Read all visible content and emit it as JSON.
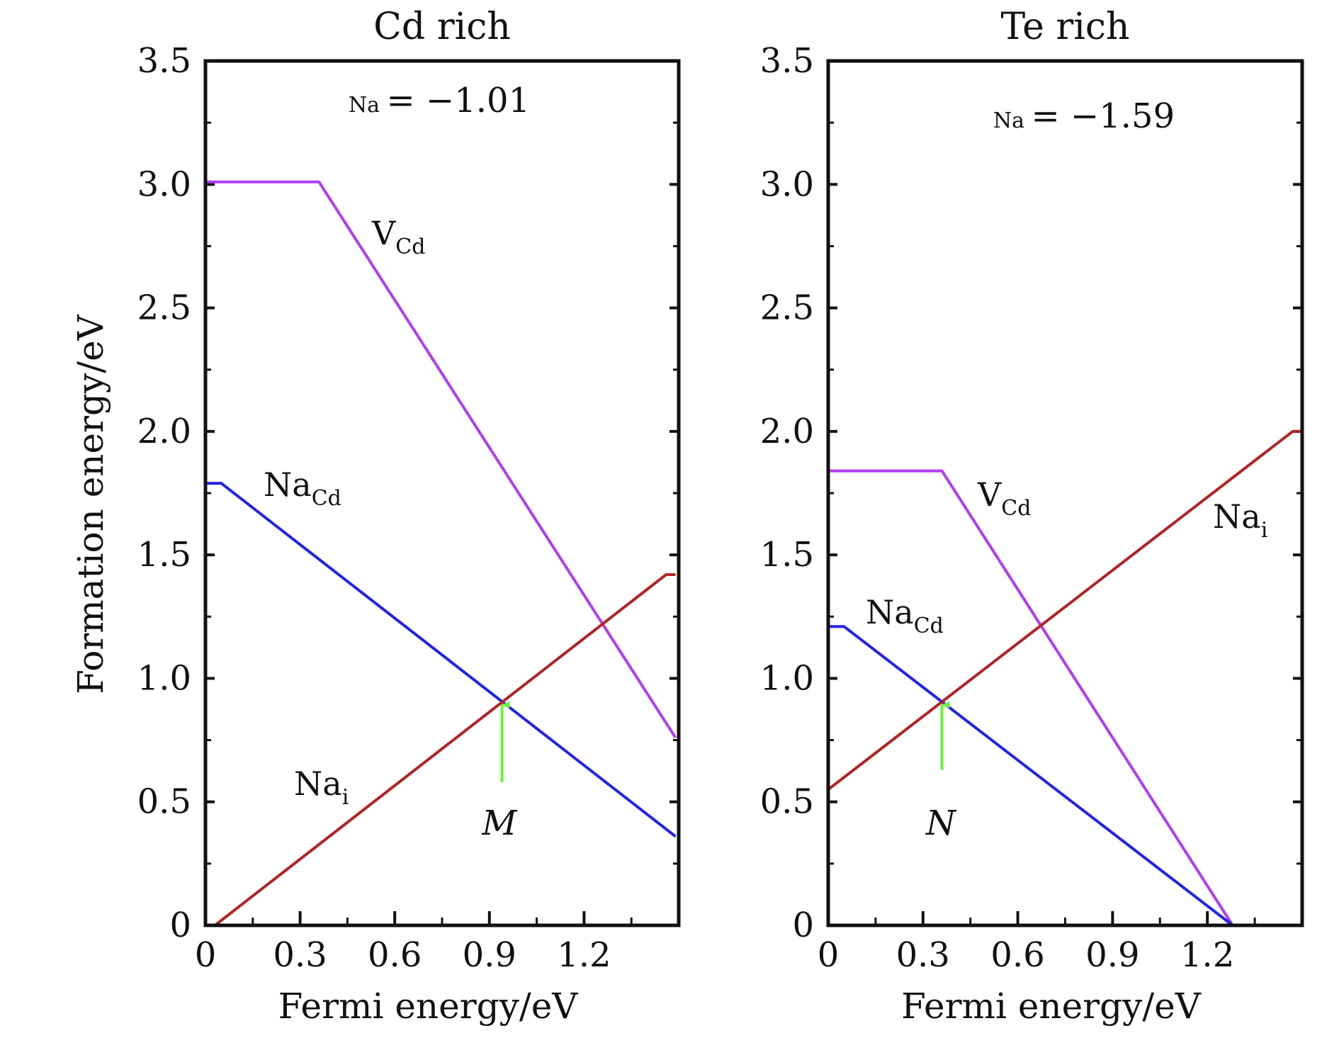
{
  "figure": {
    "ylabel": "Formation energy/eV"
  },
  "colors": {
    "V_Cd": "#b23cf0",
    "Na_Cd": "#2323e6",
    "Na_i": "#b02424",
    "arrow": "#66f23a",
    "axis": "#111111"
  },
  "chart_data": [
    {
      "type": "line",
      "title": "Cd rich",
      "xlabel": "Fermi energy/eV",
      "ylabel": "Formation energy/eV",
      "xlim": [
        0,
        1.5
      ],
      "ylim": [
        0,
        3.5
      ],
      "xticks": [
        0,
        0.3,
        0.6,
        0.9,
        1.2
      ],
      "xtick_labels": [
        "0",
        "0.3",
        "0.6",
        "0.9",
        "1.2"
      ],
      "yticks": [
        0,
        0.5,
        1.0,
        1.5,
        2.0,
        2.5,
        3.0,
        3.5
      ],
      "ytick_labels": [
        "0",
        "0.5",
        "1.0",
        "1.5",
        "2.0",
        "2.5",
        "3.0",
        "3.5"
      ],
      "grid": false,
      "annotation": {
        "prefix": "Na",
        "text": "= −1.01"
      },
      "series": [
        {
          "key": "V_Cd",
          "base": "V",
          "sub": "Cd",
          "x": [
            0,
            0.36,
            1.49
          ],
          "y": [
            3.01,
            3.01,
            0.76
          ]
        },
        {
          "key": "Na_Cd",
          "base": "Na",
          "sub": "Cd",
          "x": [
            0,
            0.05,
            1.49
          ],
          "y": [
            1.79,
            1.79,
            0.36
          ]
        },
        {
          "key": "Na_i",
          "base": "Na",
          "sub": "i",
          "x": [
            0.03,
            1.46,
            1.49
          ],
          "y": [
            0.0,
            1.42,
            1.42
          ]
        }
      ],
      "marker": {
        "label": "M",
        "x": 0.94,
        "y_tip": 0.91,
        "y_tail": 0.58
      }
    },
    {
      "type": "line",
      "title": "Te rich",
      "xlabel": "Fermi energy/eV",
      "ylabel": "",
      "xlim": [
        0,
        1.5
      ],
      "ylim": [
        0,
        3.5
      ],
      "xticks": [
        0,
        0.3,
        0.6,
        0.9,
        1.2
      ],
      "xtick_labels": [
        "0",
        "0.3",
        "0.6",
        "0.9",
        "1.2"
      ],
      "yticks": [
        0,
        0.5,
        1.0,
        1.5,
        2.0,
        2.5,
        3.0,
        3.5
      ],
      "ytick_labels": [
        "0",
        "0.5",
        "1.0",
        "1.5",
        "2.0",
        "2.5",
        "3.0",
        "3.5"
      ],
      "grid": false,
      "annotation": {
        "prefix": "Na",
        "text": "= −1.59"
      },
      "series": [
        {
          "key": "V_Cd",
          "base": "V",
          "sub": "Cd",
          "x": [
            0,
            0.36,
            1.28
          ],
          "y": [
            1.84,
            1.84,
            0.0
          ]
        },
        {
          "key": "Na_Cd",
          "base": "Na",
          "sub": "Cd",
          "x": [
            0,
            0.05,
            1.28
          ],
          "y": [
            1.21,
            1.21,
            0.0
          ]
        },
        {
          "key": "Na_i",
          "base": "Na",
          "sub": "i",
          "x": [
            0,
            1.47,
            1.5
          ],
          "y": [
            0.55,
            2.0,
            2.0
          ]
        }
      ],
      "marker": {
        "label": "N",
        "x": 0.36,
        "y_tip": 0.91,
        "y_tail": 0.63
      }
    }
  ]
}
